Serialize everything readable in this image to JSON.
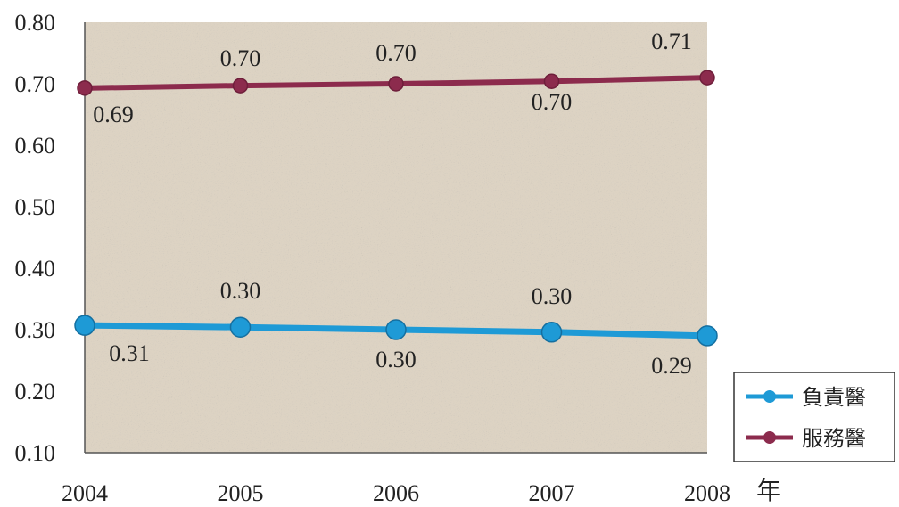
{
  "chart_data": {
    "type": "line",
    "x": [
      "2004",
      "2005",
      "2006",
      "2007",
      "2008"
    ],
    "xlabel": "年",
    "ylabel": "",
    "ylim": [
      0.1,
      0.8
    ],
    "yticks": [
      "0.10",
      "0.20",
      "0.30",
      "0.40",
      "0.50",
      "0.60",
      "0.70",
      "0.80"
    ],
    "grid": false,
    "legend_position": "bottom-right",
    "plot_background": "#ddd3c3",
    "series": [
      {
        "name": "負責醫",
        "color": "#1e9ad6",
        "values": [
          0.307,
          0.304,
          0.3,
          0.296,
          0.29
        ],
        "labels": [
          "0.31",
          "0.30",
          "0.30",
          "0.30",
          "0.29"
        ]
      },
      {
        "name": "服務醫",
        "color": "#8c2b4d",
        "values": [
          0.693,
          0.697,
          0.7,
          0.704,
          0.71
        ],
        "labels": [
          "0.69",
          "0.70",
          "0.70",
          "0.70",
          "0.71"
        ]
      }
    ]
  }
}
